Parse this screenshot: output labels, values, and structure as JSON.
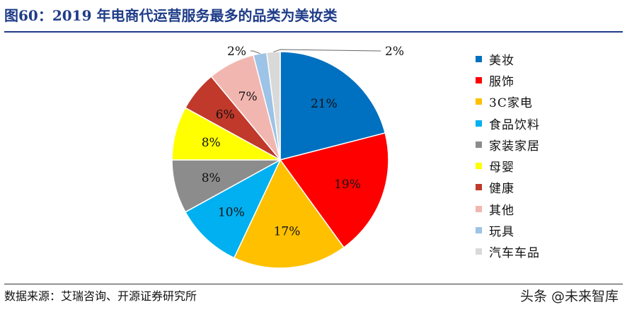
{
  "title": "图60：2019 年电商代运营服务最多的品类为美妆类",
  "source": "数据来源：艾瑞咨询、开源证券研究所",
  "watermark": "头条 @未来智库",
  "chart_data": {
    "type": "pie",
    "start_angle": "12 o'clock, clockwise",
    "legend_position": "right",
    "slices": [
      {
        "label": "美妆",
        "value": 21,
        "display": "21%",
        "color": "#0070c0"
      },
      {
        "label": "服饰",
        "value": 19,
        "display": "19%",
        "color": "#ff0000"
      },
      {
        "label": "3C家电",
        "value": 17,
        "display": "17%",
        "color": "#ffc000"
      },
      {
        "label": "食品饮料",
        "value": 10,
        "display": "10%",
        "color": "#00b0f0"
      },
      {
        "label": "家装家居",
        "value": 8,
        "display": "8%",
        "color": "#8c8c8c"
      },
      {
        "label": "母婴",
        "value": 8,
        "display": "8%",
        "color": "#ffff00"
      },
      {
        "label": "健康",
        "value": 6,
        "display": "6%",
        "color": "#c0392b"
      },
      {
        "label": "其他",
        "value": 7,
        "display": "7%",
        "color": "#f2b6b0"
      },
      {
        "label": "玩具",
        "value": 2,
        "display": "2%",
        "color": "#9dc3e6"
      },
      {
        "label": "汽车车品",
        "value": 2,
        "display": "2%",
        "color": "#d9d9d9"
      }
    ]
  }
}
